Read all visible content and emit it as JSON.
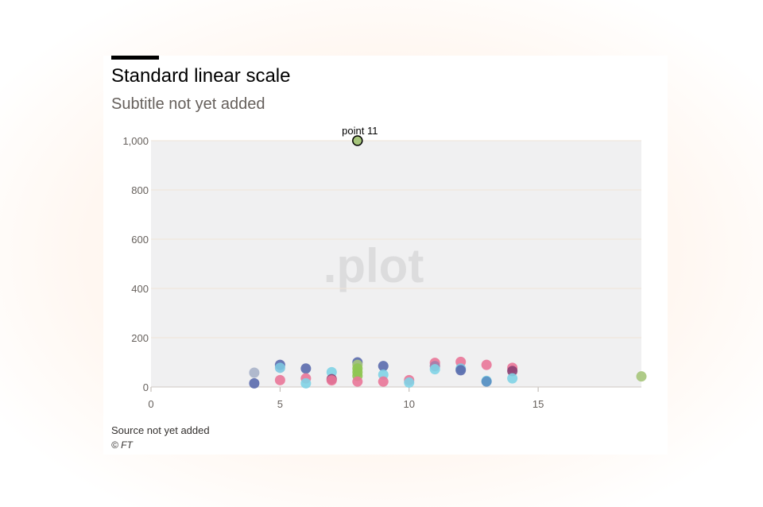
{
  "header": {
    "title": "Standard linear scale",
    "subtitle": "Subtitle not yet added"
  },
  "footer": {
    "source": "Source not yet added",
    "copyright": "© FT"
  },
  "watermark": ".plot",
  "colors": {
    "plot_bg": "#f0f0f1",
    "grid": "#efe5d8",
    "axis_text": "#66605c",
    "highlight": "#a6c57b",
    "accent_bar": "#000000"
  },
  "chart_data": {
    "type": "scatter",
    "xlim": [
      0,
      19
    ],
    "ylim": [
      0,
      1000
    ],
    "xticks": [
      "0",
      "5",
      "10",
      "15"
    ],
    "xtick_values": [
      0,
      5,
      10,
      15
    ],
    "yticks": [
      "0",
      "200",
      "400",
      "600",
      "800",
      "1,000"
    ],
    "ytick_values": [
      0,
      200,
      400,
      600,
      800,
      1000
    ],
    "grid": "horizontal",
    "points": [
      {
        "x": 4,
        "y": 58,
        "color": "#a9b3c9"
      },
      {
        "x": 4,
        "y": 15,
        "color": "#5a6aad"
      },
      {
        "x": 5,
        "y": 90,
        "color": "#5a6aad"
      },
      {
        "x": 5,
        "y": 78,
        "color": "#7dc6e0"
      },
      {
        "x": 5,
        "y": 28,
        "color": "#e97598"
      },
      {
        "x": 6,
        "y": 75,
        "color": "#5a6aad"
      },
      {
        "x": 6,
        "y": 35,
        "color": "#e97598"
      },
      {
        "x": 6,
        "y": 15,
        "color": "#7fd3e6"
      },
      {
        "x": 7,
        "y": 60,
        "color": "#7fd3e6"
      },
      {
        "x": 7,
        "y": 32,
        "color": "#8a3f72"
      },
      {
        "x": 7,
        "y": 27,
        "color": "#e97598"
      },
      {
        "x": 8,
        "y": 100,
        "color": "#5a6aad"
      },
      {
        "x": 8,
        "y": 90,
        "color": "#a6c57b"
      },
      {
        "x": 8,
        "y": 75,
        "color": "#8fc552"
      },
      {
        "x": 8,
        "y": 60,
        "color": "#8fc552"
      },
      {
        "x": 8,
        "y": 45,
        "color": "#8fc552"
      },
      {
        "x": 8,
        "y": 22,
        "color": "#e97598"
      },
      {
        "x": 9,
        "y": 85,
        "color": "#5a6aad"
      },
      {
        "x": 9,
        "y": 50,
        "color": "#7fd3e6"
      },
      {
        "x": 9,
        "y": 22,
        "color": "#e97598"
      },
      {
        "x": 10,
        "y": 28,
        "color": "#e97598"
      },
      {
        "x": 10,
        "y": 18,
        "color": "#7fd3e6"
      },
      {
        "x": 11,
        "y": 98,
        "color": "#e97598"
      },
      {
        "x": 11,
        "y": 85,
        "color": "#a67aa9"
      },
      {
        "x": 11,
        "y": 72,
        "color": "#7fd3e6"
      },
      {
        "x": 12,
        "y": 102,
        "color": "#e97598"
      },
      {
        "x": 12,
        "y": 75,
        "color": "#7dc6e0"
      },
      {
        "x": 12,
        "y": 68,
        "color": "#5a6aad"
      },
      {
        "x": 13,
        "y": 90,
        "color": "#e97598"
      },
      {
        "x": 13,
        "y": 25,
        "color": "#7fd3e6"
      },
      {
        "x": 13,
        "y": 22,
        "color": "#5a8fc2"
      },
      {
        "x": 14,
        "y": 78,
        "color": "#e97598"
      },
      {
        "x": 14,
        "y": 65,
        "color": "#8a3f72"
      },
      {
        "x": 14,
        "y": 35,
        "color": "#7fd3e6"
      },
      {
        "x": 19,
        "y": 43,
        "color": "#a6c57b"
      }
    ],
    "highlight": {
      "x": 8,
      "y": 1000,
      "label": "point 11"
    }
  }
}
